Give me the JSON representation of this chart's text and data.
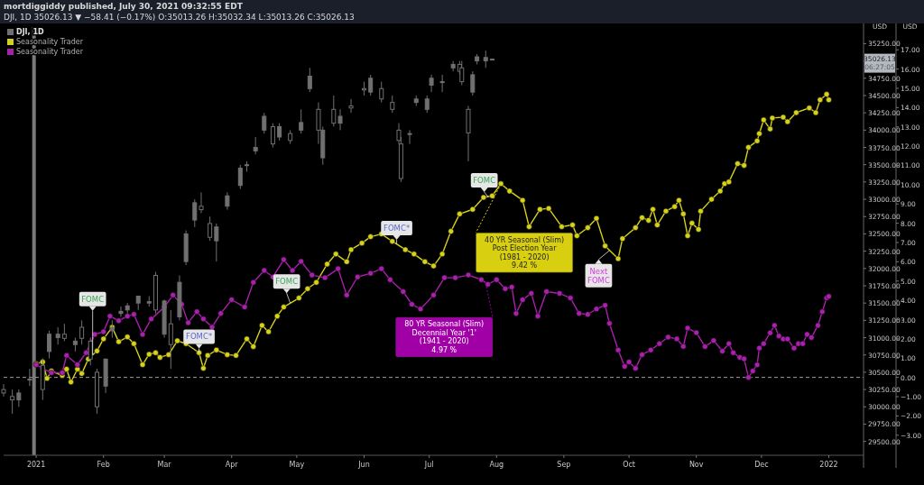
{
  "chart_data": {
    "type": "candlestick",
    "title": "mortdiggiddy published, July 30, 2021 09:32:55 EDT",
    "subtitle": "DJI, 1D 35026.13 ▼ −58.41 (−0.17%) O:35013.26 H:35032.34 L:35013.26 C:35026.13",
    "ylabel": "USD",
    "y2label": "USD",
    "legend": "top left",
    "marker": "circle",
    "xlim": [
      "2020-12-17",
      "2022-01-17"
    ],
    "xticks": [
      {
        "value": "2021-01-01",
        "label": "2021"
      },
      {
        "value": "2021-02-01",
        "label": "Feb"
      },
      {
        "value": "2021-03-01",
        "label": "Mar"
      },
      {
        "value": "2021-04-01",
        "label": "Apr"
      },
      {
        "value": "2021-05-01",
        "label": "May"
      },
      {
        "value": "2021-06-01",
        "label": "Jun"
      },
      {
        "value": "2021-07-01",
        "label": "Jul"
      },
      {
        "value": "2021-08-01",
        "label": "Aug"
      },
      {
        "value": "2021-09-01",
        "label": "Sep"
      },
      {
        "value": "2021-10-01",
        "label": "Oct"
      },
      {
        "value": "2021-11-01",
        "label": "Nov"
      },
      {
        "value": "2021-12-01",
        "label": "Dec"
      },
      {
        "value": "2022-01-01",
        "label": "2022"
      }
    ],
    "ylim": [
      29300,
      35490
    ],
    "yticks": [
      {
        "value": 29500,
        "label": "29500.00"
      },
      {
        "value": 29750,
        "label": "29750.00"
      },
      {
        "value": 30000,
        "label": "30000.00"
      },
      {
        "value": 30250,
        "label": "30250.00"
      },
      {
        "value": 30500,
        "label": "30500.00"
      },
      {
        "value": 30750,
        "label": "30750.00"
      },
      {
        "value": 31000,
        "label": "31000.00"
      },
      {
        "value": 31250,
        "label": "31250.00"
      },
      {
        "value": 31500,
        "label": "31500.00"
      },
      {
        "value": 31750,
        "label": "31750.00"
      },
      {
        "value": 32000,
        "label": "32000.00"
      },
      {
        "value": 32250,
        "label": "32250.00"
      },
      {
        "value": 32500,
        "label": "32500.00"
      },
      {
        "value": 32750,
        "label": "32750.00"
      },
      {
        "value": 33000,
        "label": "33000.00"
      },
      {
        "value": 33250,
        "label": "33250.00"
      },
      {
        "value": 33500,
        "label": "33500.00"
      },
      {
        "value": 33750,
        "label": "33750.00"
      },
      {
        "value": 34000,
        "label": "34000.00"
      },
      {
        "value": 34250,
        "label": "34250.00"
      },
      {
        "value": 34500,
        "label": "34500.00"
      },
      {
        "value": 34750,
        "label": "34750.00"
      },
      {
        "value": 35000,
        "label": null
      },
      {
        "value": 35250,
        "label": "35250.00"
      }
    ],
    "y2lim": [
      -4.04,
      18.18
    ],
    "y2ticks": [
      {
        "value": -3,
        "label": "−3.00"
      },
      {
        "value": -2,
        "label": "−2.00"
      },
      {
        "value": -1,
        "label": "−1.00"
      },
      {
        "value": 0,
        "label": "0.00"
      },
      {
        "value": 1,
        "label": "1.00"
      },
      {
        "value": 2,
        "label": "2.00"
      },
      {
        "value": 3,
        "label": "3.00"
      },
      {
        "value": 4,
        "label": "4.00"
      },
      {
        "value": 5,
        "label": "5.00"
      },
      {
        "value": 6,
        "label": "6.00"
      },
      {
        "value": 7,
        "label": "7.00"
      },
      {
        "value": 8,
        "label": "8.00"
      },
      {
        "value": 9,
        "label": "9.00"
      },
      {
        "value": 10,
        "label": "10.00"
      },
      {
        "value": 11,
        "label": "11.00"
      },
      {
        "value": 12,
        "label": "12.00"
      },
      {
        "value": 13,
        "label": "13.00"
      },
      {
        "value": 14,
        "label": "14.00"
      },
      {
        "value": 15,
        "label": "15.00"
      },
      {
        "value": 16,
        "label": "16.00"
      },
      {
        "value": 17,
        "label": "17.00"
      }
    ],
    "ref_lines": [
      {
        "axis": "x",
        "value": "2020-12-31",
        "color": "#7a7a7a"
      },
      {
        "axis": "y2",
        "value": 0,
        "color": "#9e9e9e",
        "line_style": "dashed"
      }
    ],
    "series": [
      {
        "name": "DJI, 1D",
        "color": "#707070",
        "x": [
          "2020-12-17",
          "2020-12-21",
          "2020-12-24",
          "2020-12-29",
          "2021-01-04",
          "2021-01-07",
          "2021-01-11",
          "2021-01-14",
          "2021-01-19",
          "2021-01-22",
          "2021-01-26",
          "2021-01-29",
          "2021-02-02",
          "2021-02-05",
          "2021-02-09",
          "2021-02-12",
          "2021-02-17",
          "2021-02-22",
          "2021-02-25",
          "2021-03-01",
          "2021-03-04",
          "2021-03-08",
          "2021-03-11",
          "2021-03-15",
          "2021-03-18",
          "2021-03-22",
          "2021-03-25",
          "2021-03-30",
          "2021-04-05",
          "2021-04-08",
          "2021-04-12",
          "2021-04-16",
          "2021-04-20",
          "2021-04-23",
          "2021-04-28",
          "2021-05-03",
          "2021-05-07",
          "2021-05-11",
          "2021-05-13",
          "2021-05-18",
          "2021-05-21",
          "2021-05-26",
          "2021-06-01",
          "2021-06-04",
          "2021-06-09",
          "2021-06-14",
          "2021-06-17",
          "2021-06-18",
          "2021-06-22",
          "2021-06-25",
          "2021-06-30",
          "2021-07-02",
          "2021-07-07",
          "2021-07-12",
          "2021-07-15",
          "2021-07-16",
          "2021-07-19",
          "2021-07-21",
          "2021-07-23",
          "2021-07-27",
          "2021-07-30"
        ],
        "ohlc": [
          [
            30250,
            30330,
            30150,
            30200
          ],
          [
            30150,
            30250,
            29900,
            30100
          ],
          [
            30100,
            30250,
            30000,
            30200
          ],
          [
            30400,
            30550,
            30300,
            30400
          ],
          [
            30600,
            30700,
            30100,
            30250
          ],
          [
            30800,
            31100,
            30700,
            31050
          ],
          [
            31000,
            31150,
            30900,
            31050
          ],
          [
            31050,
            31200,
            30950,
            30990
          ],
          [
            30900,
            31000,
            30800,
            30950
          ],
          [
            31150,
            31250,
            30900,
            30990
          ],
          [
            30950,
            31000,
            30600,
            30690
          ],
          [
            30500,
            30550,
            29900,
            30000
          ],
          [
            30300,
            30700,
            30200,
            30690
          ],
          [
            31100,
            31250,
            31000,
            31150
          ],
          [
            31350,
            31450,
            31300,
            31380
          ],
          [
            31400,
            31500,
            31350,
            31460
          ],
          [
            31500,
            31600,
            31400,
            31600
          ],
          [
            31500,
            31600,
            31450,
            31520
          ],
          [
            31900,
            31950,
            31350,
            31400
          ],
          [
            31050,
            31550,
            31000,
            31530
          ],
          [
            31200,
            31400,
            30550,
            30900
          ],
          [
            31300,
            31900,
            31250,
            31800
          ],
          [
            32100,
            32550,
            32050,
            32500
          ],
          [
            32700,
            33000,
            32600,
            32950
          ],
          [
            32900,
            33100,
            32800,
            32850
          ],
          [
            32650,
            32750,
            32400,
            32450
          ],
          [
            32400,
            32650,
            32100,
            32600
          ],
          [
            32900,
            33100,
            32850,
            33050
          ],
          [
            33200,
            33500,
            33150,
            33450
          ],
          [
            33500,
            33550,
            33400,
            33500
          ],
          [
            33700,
            33900,
            33650,
            33750
          ],
          [
            34000,
            34250,
            33950,
            34200
          ],
          [
            34050,
            34100,
            33750,
            33800
          ],
          [
            33900,
            34100,
            33850,
            34050
          ],
          [
            33950,
            34000,
            33800,
            33850
          ],
          [
            34000,
            34300,
            33950,
            34110
          ],
          [
            34600,
            34900,
            34550,
            34780
          ],
          [
            34300,
            34400,
            33800,
            34000
          ],
          [
            33600,
            34050,
            33500,
            34000
          ],
          [
            34300,
            34500,
            34050,
            34100
          ],
          [
            34100,
            34300,
            34000,
            34200
          ],
          [
            34350,
            34450,
            34250,
            34320
          ],
          [
            34600,
            34700,
            34500,
            34580
          ],
          [
            34550,
            34800,
            34500,
            34750
          ],
          [
            34600,
            34700,
            34400,
            34450
          ],
          [
            34400,
            34500,
            34250,
            34300
          ],
          [
            34000,
            34100,
            33800,
            33850
          ],
          [
            33800,
            33900,
            33250,
            33300
          ],
          [
            33950,
            34000,
            33800,
            33950
          ],
          [
            34400,
            34500,
            34350,
            34450
          ],
          [
            34300,
            34500,
            34250,
            34450
          ],
          [
            34650,
            34800,
            34550,
            34750
          ],
          [
            34700,
            34800,
            34550,
            34700
          ],
          [
            34900,
            35000,
            34850,
            34950
          ],
          [
            34950,
            35000,
            34800,
            34850
          ],
          [
            34900,
            35000,
            34650,
            34700
          ],
          [
            34300,
            34350,
            33550,
            33960
          ],
          [
            34550,
            34850,
            34500,
            34800
          ],
          [
            35000,
            35100,
            34950,
            35060
          ],
          [
            35000,
            35150,
            34900,
            35050
          ],
          [
            35013.26,
            35032.34,
            35013.26,
            35026.13
          ]
        ]
      },
      {
        "name": "Seasonality Trader",
        "type": "line",
        "axis": "y2",
        "color": "#d6d11c",
        "x": [
          "2021-01-01",
          "2021-01-04",
          "2021-01-06",
          "2021-01-08",
          "2021-01-13",
          "2021-01-15",
          "2021-01-17",
          "2021-01-20",
          "2021-01-22",
          "2021-01-25",
          "2021-01-29",
          "2021-02-01",
          "2021-02-05",
          "2021-02-08",
          "2021-02-12",
          "2021-02-15",
          "2021-02-19",
          "2021-02-22",
          "2021-02-25",
          "2021-02-27",
          "2021-03-03",
          "2021-03-07",
          "2021-03-11",
          "2021-03-17",
          "2021-03-19",
          "2021-03-21",
          "2021-03-25",
          "2021-03-30",
          "2021-04-03",
          "2021-04-08",
          "2021-04-11",
          "2021-04-15",
          "2021-04-18",
          "2021-04-22",
          "2021-04-25",
          "2021-05-02",
          "2021-05-06",
          "2021-05-10",
          "2021-05-15",
          "2021-05-19",
          "2021-05-24",
          "2021-05-26",
          "2021-05-31",
          "2021-06-04",
          "2021-06-09",
          "2021-06-14",
          "2021-06-20",
          "2021-06-24",
          "2021-06-29",
          "2021-07-03",
          "2021-07-07",
          "2021-07-11",
          "2021-07-15",
          "2021-07-21",
          "2021-07-26",
          "2021-07-30",
          "2021-08-03",
          "2021-08-07",
          "2021-08-13",
          "2021-08-16",
          "2021-08-21",
          "2021-08-25",
          "2021-08-31",
          "2021-09-05",
          "2021-09-07",
          "2021-09-12",
          "2021-09-16",
          "2021-09-20",
          "2021-09-26",
          "2021-09-28",
          "2021-10-04",
          "2021-10-07",
          "2021-10-10",
          "2021-10-12",
          "2021-10-14",
          "2021-10-18",
          "2021-10-22",
          "2021-10-24",
          "2021-10-26",
          "2021-10-28",
          "2021-10-30",
          "2021-11-02",
          "2021-11-03",
          "2021-11-08",
          "2021-11-12",
          "2021-11-14",
          "2021-11-16",
          "2021-11-20",
          "2021-11-23",
          "2021-11-25",
          "2021-11-29",
          "2021-11-30",
          "2021-12-02",
          "2021-12-05",
          "2021-12-06",
          "2021-12-11",
          "2021-12-13",
          "2021-12-17",
          "2021-12-23",
          "2021-12-26",
          "2021-12-28",
          "2021-12-31",
          "2022-01-01"
        ],
        "values": [
          0.71,
          0.8,
          -0.05,
          0.33,
          0.1,
          0.43,
          -0.24,
          0.43,
          0.2,
          0.95,
          1.37,
          2.0,
          2.6,
          1.85,
          2.1,
          1.75,
          0.66,
          1.2,
          1.28,
          1.04,
          1.18,
          1.9,
          1.75,
          1.28,
          0.47,
          1.14,
          1.42,
          1.18,
          1.14,
          2.0,
          1.6,
          2.7,
          2.37,
          3.18,
          3.65,
          4.12,
          4.6,
          4.93,
          5.88,
          6.4,
          6.0,
          6.63,
          6.97,
          7.3,
          7.44,
          7.06,
          6.63,
          6.4,
          6.0,
          5.78,
          6.4,
          7.58,
          8.48,
          8.72,
          9.34,
          9.42,
          10.05,
          9.67,
          9.19,
          7.82,
          8.72,
          8.77,
          7.82,
          7.91,
          7.35,
          7.77,
          8.25,
          6.82,
          6.16,
          7.2,
          7.77,
          8.29,
          8.15,
          8.72,
          7.91,
          8.63,
          8.86,
          9.19,
          8.48,
          7.35,
          8.0,
          7.68,
          8.63,
          9.24,
          9.67,
          10.05,
          10.14,
          11.09,
          11.0,
          11.94,
          12.27,
          12.65,
          13.36,
          12.89,
          13.46,
          13.5,
          13.27,
          13.74,
          13.98,
          13.74,
          14.4,
          14.69,
          14.4
        ]
      },
      {
        "name": "Seasonality Trader",
        "type": "line",
        "axis": "y2",
        "color": "#a821ab",
        "x": [
          "2021-01-01",
          "2021-01-04",
          "2021-01-08",
          "2021-01-13",
          "2021-01-15",
          "2021-01-20",
          "2021-01-24",
          "2021-01-28",
          "2021-02-01",
          "2021-02-04",
          "2021-02-08",
          "2021-02-12",
          "2021-02-15",
          "2021-02-19",
          "2021-02-23",
          "2021-03-01",
          "2021-03-05",
          "2021-03-09",
          "2021-03-12",
          "2021-03-16",
          "2021-03-19",
          "2021-03-23",
          "2021-03-27",
          "2021-04-01",
          "2021-04-07",
          "2021-04-11",
          "2021-04-16",
          "2021-04-20",
          "2021-04-25",
          "2021-04-29",
          "2021-05-03",
          "2021-05-08",
          "2021-05-14",
          "2021-05-20",
          "2021-05-24",
          "2021-05-29",
          "2021-06-04",
          "2021-06-09",
          "2021-06-13",
          "2021-06-19",
          "2021-06-23",
          "2021-06-27",
          "2021-07-03",
          "2021-07-08",
          "2021-07-13",
          "2021-07-19",
          "2021-07-25",
          "2021-07-28",
          "2021-08-01",
          "2021-08-05",
          "2021-08-08",
          "2021-08-10",
          "2021-08-13",
          "2021-08-17",
          "2021-08-20",
          "2021-08-24",
          "2021-08-30",
          "2021-09-04",
          "2021-09-08",
          "2021-09-12",
          "2021-09-16",
          "2021-09-20",
          "2021-09-22",
          "2021-09-26",
          "2021-09-29",
          "2021-10-01",
          "2021-10-04",
          "2021-10-07",
          "2021-10-11",
          "2021-10-15",
          "2021-10-19",
          "2021-10-23",
          "2021-10-26",
          "2021-10-28",
          "2021-11-01",
          "2021-11-05",
          "2021-11-09",
          "2021-11-13",
          "2021-11-16",
          "2021-11-18",
          "2021-11-21",
          "2021-11-23",
          "2021-11-25",
          "2021-11-27",
          "2021-11-29",
          "2021-11-30",
          "2021-12-02",
          "2021-12-05",
          "2021-12-07",
          "2021-12-09",
          "2021-12-11",
          "2021-12-13",
          "2021-12-16",
          "2021-12-18",
          "2021-12-20",
          "2021-12-22",
          "2021-12-24",
          "2021-12-27",
          "2021-12-29",
          "2021-12-31",
          "2022-01-01"
        ],
        "values": [
          0.66,
          0.47,
          0.24,
          0.24,
          1.14,
          0.66,
          1.28,
          2.23,
          2.37,
          3.18,
          2.94,
          3.18,
          3.27,
          2.23,
          3.03,
          3.65,
          4.27,
          3.79,
          2.84,
          3.41,
          3.03,
          2.61,
          3.32,
          4.03,
          3.65,
          4.93,
          5.55,
          5.21,
          6.11,
          5.55,
          6.02,
          5.31,
          5.17,
          5.64,
          4.27,
          5.21,
          5.4,
          5.64,
          5.07,
          4.45,
          3.79,
          3.55,
          4.27,
          5.17,
          5.17,
          5.31,
          5.07,
          4.83,
          5.07,
          4.6,
          4.69,
          3.32,
          4.03,
          4.36,
          3.18,
          4.45,
          4.36,
          4.12,
          3.32,
          3.27,
          3.55,
          3.74,
          2.8,
          1.42,
          0.57,
          0.8,
          0.47,
          1.18,
          1.42,
          1.75,
          2.09,
          2.0,
          1.61,
          2.56,
          2.32,
          1.6,
          1.91,
          1.36,
          1.75,
          1.28,
          1.04,
          0.96,
          0.0,
          0.33,
          0.65,
          1.52,
          1.75,
          2.31,
          2.7,
          2.15,
          1.99,
          1.99,
          1.52,
          1.75,
          1.75,
          2.23,
          2.07,
          2.7,
          3.41,
          4.12,
          4.2
        ]
      }
    ],
    "annotations": [
      {
        "text": "FOMC",
        "x": "2021-01-27",
        "y": 30750
      },
      {
        "text": "FOMC*",
        "x": "2021-03-17",
        "y": 30780
      },
      {
        "text": "FOMC",
        "x": "2021-04-28",
        "y": 31500
      },
      {
        "text": "FOMC*",
        "x": "2021-06-16",
        "y": 32350
      },
      {
        "text": "FOMC",
        "x": "2021-07-28",
        "y": 33040
      },
      {
        "text": "Next\nFOMC",
        "x": "2021-09-22",
        "y": 32260
      },
      {
        "text": "40 YR Seasonal (Slim)\nPost Election Year\n(1981 - 2020)\n9.42 %",
        "x": "2021-08-03",
        "y": 33220
      },
      {
        "text": "80 YR Seasonal (Slim)\nDecennial Year '1'\n(1941 - 2020)\n4.97 %",
        "x": "2021-07-27",
        "y": 31790
      },
      "35026.13",
      "06:27:05"
    ]
  }
}
